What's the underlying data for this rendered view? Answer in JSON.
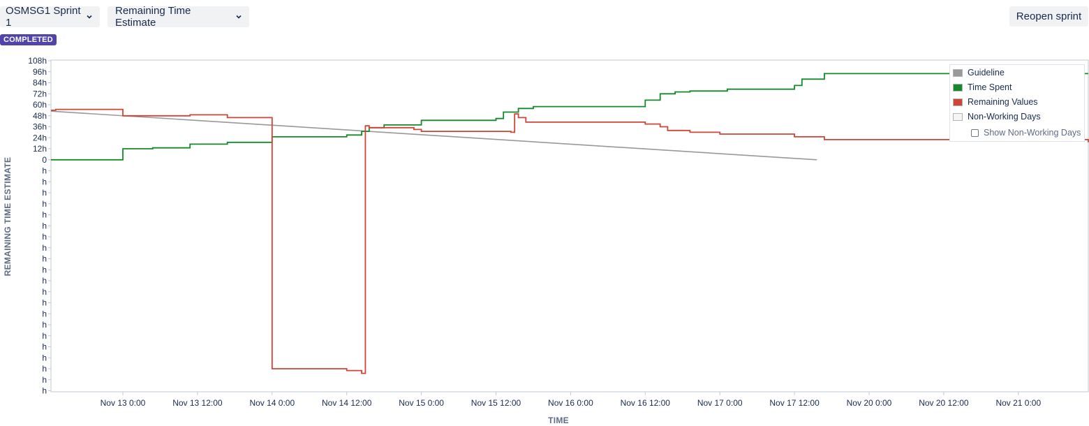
{
  "header": {
    "sprint_label": "OSMSG1 Sprint 1",
    "metric_label": "Remaining Time Estimate",
    "reopen_label": "Reopen sprint",
    "status_badge": "COMPLETED"
  },
  "legend": {
    "items": [
      {
        "label": "Guideline",
        "color": "#999999"
      },
      {
        "label": "Time Spent",
        "color": "#14892c"
      },
      {
        "label": "Remaining Values",
        "color": "#d04437"
      },
      {
        "label": "Non-Working Days",
        "color": "#f5f5f5"
      }
    ],
    "toggle_label": "Show Non-Working Days"
  },
  "chart_data": {
    "type": "line",
    "xlabel": "TIME",
    "ylabel": "REMAINING TIME ESTIMATE",
    "x_tick_labels": [
      "Nov 13 0:00",
      "Nov 13 12:00",
      "Nov 14 0:00",
      "Nov 14 12:00",
      "Nov 15 0:00",
      "Nov 15 12:00",
      "Nov 16 0:00",
      "Nov 16 12:00",
      "Nov 17 0:00",
      "Nov 17 12:00",
      "Nov 20 0:00",
      "Nov 20 12:00",
      "Nov 21 0:00"
    ],
    "y_tick_labels": [
      "108h",
      "96h",
      "84h",
      "72h",
      "60h",
      "48h",
      "36h",
      "24h",
      "12h",
      "0",
      "h",
      "h",
      "h",
      "h",
      "h",
      "h",
      "h",
      "h",
      "h",
      "h",
      "h",
      "h",
      "h",
      "h",
      "h",
      "h",
      "h",
      "h",
      "h",
      "h",
      "h"
    ],
    "ylim": [
      -252,
      108
    ],
    "grid": false,
    "legend_position": "top-right",
    "x_range_ticks": [
      -1.0,
      13.2
    ],
    "series": [
      {
        "name": "Guideline",
        "color": "#999999",
        "step": false,
        "points": [
          [
            -1.0,
            53
          ],
          [
            9.3,
            0
          ]
        ]
      },
      {
        "name": "Time Spent",
        "color": "#14892c",
        "step": true,
        "points": [
          [
            -1.0,
            0
          ],
          [
            0.0,
            12
          ],
          [
            0.4,
            13
          ],
          [
            0.9,
            17
          ],
          [
            1.4,
            19
          ],
          [
            2.0,
            25
          ],
          [
            3.0,
            27
          ],
          [
            3.2,
            31
          ],
          [
            3.3,
            35
          ],
          [
            3.5,
            38
          ],
          [
            4.0,
            43
          ],
          [
            5.0,
            45
          ],
          [
            5.1,
            52
          ],
          [
            5.3,
            56
          ],
          [
            5.5,
            58
          ],
          [
            7.0,
            65
          ],
          [
            7.2,
            72
          ],
          [
            7.4,
            74
          ],
          [
            7.6,
            75
          ],
          [
            8.1,
            77
          ],
          [
            9.0,
            81
          ],
          [
            9.1,
            88
          ],
          [
            9.4,
            94
          ],
          [
            14.0,
            94
          ]
        ]
      },
      {
        "name": "Remaining Values",
        "color": "#d04437",
        "step": true,
        "points": [
          [
            -1.0,
            54
          ],
          [
            -0.9,
            55
          ],
          [
            0.0,
            48
          ],
          [
            0.9,
            49
          ],
          [
            1.4,
            46
          ],
          [
            2.0,
            -228
          ],
          [
            3.0,
            -230
          ],
          [
            3.2,
            -233
          ],
          [
            3.25,
            37
          ],
          [
            3.3,
            35
          ],
          [
            3.9,
            33
          ],
          [
            4.0,
            31
          ],
          [
            5.2,
            30
          ],
          [
            5.25,
            50
          ],
          [
            5.3,
            46
          ],
          [
            5.4,
            41
          ],
          [
            7.0,
            39
          ],
          [
            7.2,
            36
          ],
          [
            7.3,
            32
          ],
          [
            7.6,
            30
          ],
          [
            8.0,
            28
          ],
          [
            9.0,
            25
          ],
          [
            9.4,
            22
          ],
          [
            13.9,
            22
          ],
          [
            14.0,
            19
          ]
        ]
      }
    ]
  }
}
